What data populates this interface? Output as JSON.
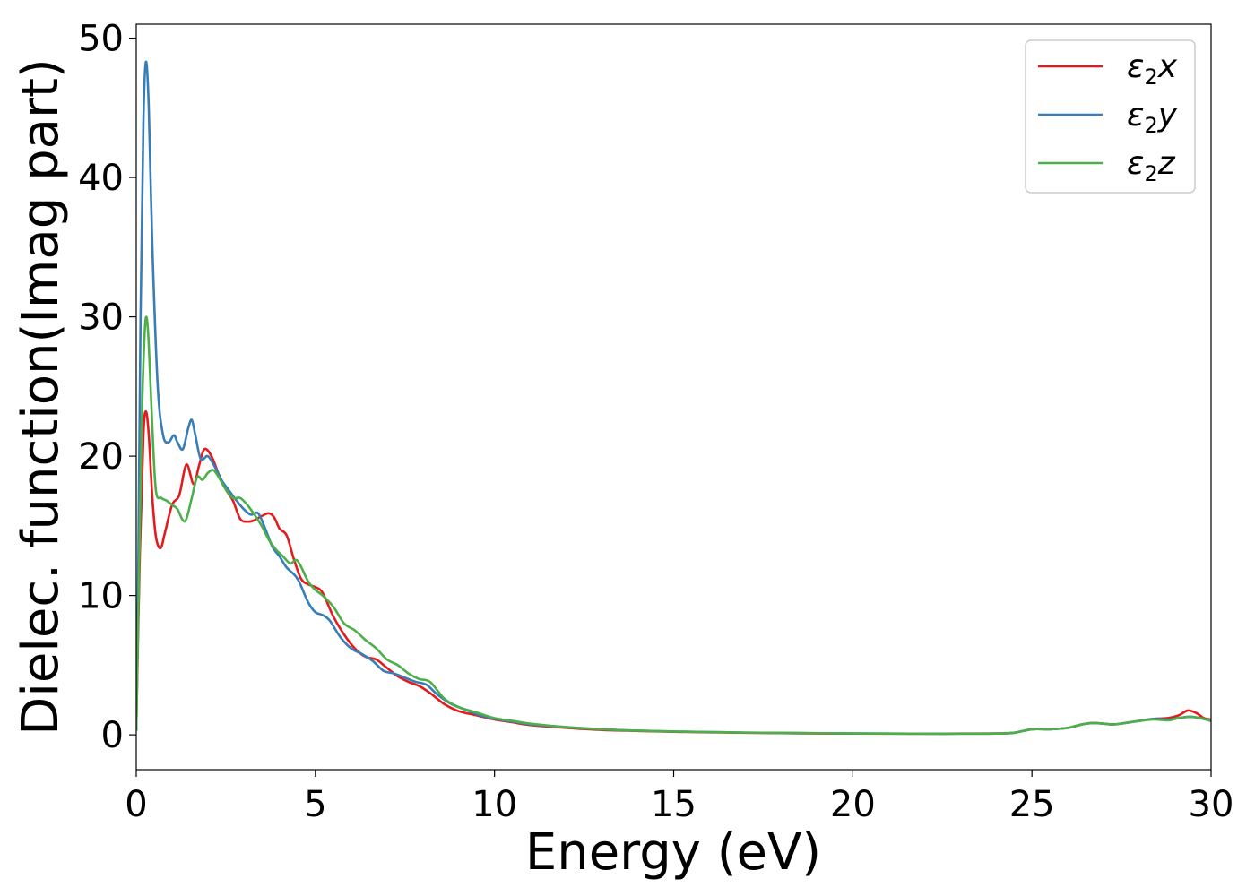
{
  "chart_data": {
    "type": "line",
    "title": "",
    "xlabel": "Energy (eV)",
    "ylabel": "Dielec. function(Imag part)",
    "xlim": [
      0,
      30
    ],
    "ylim": [
      -2.5,
      51
    ],
    "xticks": [
      0,
      5,
      10,
      15,
      20,
      25,
      30
    ],
    "yticks": [
      0,
      10,
      20,
      30,
      40,
      50
    ],
    "xtick_labels": [
      "0",
      "5",
      "10",
      "15",
      "20",
      "25",
      "30"
    ],
    "ytick_labels": [
      "0",
      "10",
      "20",
      "30",
      "40",
      "50"
    ],
    "grid": false,
    "legend_position": "top-right",
    "series": [
      {
        "name": "ε₂x",
        "legend_base": "ε",
        "legend_sub": "2",
        "legend_var": "x",
        "color": "#e41a1c",
        "x": [
          0,
          0.1,
          0.2,
          0.27,
          0.35,
          0.45,
          0.55,
          0.68,
          0.8,
          1.0,
          1.2,
          1.4,
          1.6,
          1.75,
          1.9,
          2.1,
          2.3,
          2.5,
          2.7,
          2.9,
          3.1,
          3.3,
          3.5,
          3.7,
          3.85,
          4.0,
          4.2,
          4.4,
          4.6,
          4.8,
          5.0,
          5.2,
          5.5,
          5.8,
          6.1,
          6.4,
          6.7,
          7.0,
          7.3,
          7.6,
          7.9,
          8.2,
          8.6,
          9.0,
          9.5,
          10,
          10.5,
          11,
          12,
          13,
          14,
          15,
          16,
          17,
          18,
          19,
          20,
          21,
          22,
          23,
          24,
          24.5,
          25,
          25.5,
          26,
          26.4,
          26.7,
          27,
          27.3,
          27.6,
          28,
          28.4,
          28.8,
          29.1,
          29.35,
          29.6,
          29.8,
          30
        ],
        "y": [
          0.3,
          13,
          21.5,
          23.2,
          21.5,
          17,
          14.2,
          13.4,
          14.5,
          16.5,
          17.2,
          19.4,
          18.0,
          19.3,
          20.5,
          20.0,
          18.7,
          17.6,
          16.8,
          15.5,
          15.3,
          15.4,
          15.7,
          15.9,
          15.6,
          14.8,
          14.3,
          12.6,
          11.2,
          10.8,
          10.6,
          10.2,
          8.5,
          7.2,
          6.2,
          5.6,
          5.4,
          4.8,
          4.2,
          3.8,
          3.5,
          3.0,
          2.2,
          1.7,
          1.4,
          1.1,
          0.9,
          0.7,
          0.5,
          0.35,
          0.28,
          0.22,
          0.18,
          0.15,
          0.12,
          0.1,
          0.09,
          0.08,
          0.08,
          0.09,
          0.1,
          0.15,
          0.4,
          0.4,
          0.5,
          0.75,
          0.85,
          0.8,
          0.75,
          0.85,
          1.0,
          1.15,
          1.2,
          1.4,
          1.75,
          1.55,
          1.2,
          1.1
        ]
      },
      {
        "name": "ε₂y",
        "legend_base": "ε",
        "legend_sub": "2",
        "legend_var": "y",
        "color": "#377eb8",
        "x": [
          0,
          0.05,
          0.12,
          0.2,
          0.27,
          0.35,
          0.45,
          0.6,
          0.75,
          0.9,
          1.05,
          1.15,
          1.3,
          1.45,
          1.55,
          1.65,
          1.8,
          2.0,
          2.2,
          2.4,
          2.6,
          2.8,
          3.0,
          3.2,
          3.4,
          3.6,
          3.8,
          4.0,
          4.2,
          4.5,
          4.8,
          5.0,
          5.2,
          5.4,
          5.7,
          6.0,
          6.3,
          6.6,
          6.9,
          7.2,
          7.5,
          7.8,
          8.1,
          8.4,
          8.8,
          9.2,
          9.6,
          10,
          10.5,
          11,
          12,
          13,
          14,
          15,
          16,
          17,
          18,
          19,
          20,
          21,
          22,
          23,
          24,
          24.5,
          25,
          25.5,
          26,
          26.4,
          26.7,
          27,
          27.3,
          27.6,
          28,
          28.4,
          28.8,
          29.1,
          29.4,
          29.7,
          30
        ],
        "y": [
          0.3,
          10,
          30,
          44,
          48.3,
          45,
          35,
          25,
          21.5,
          21.0,
          21.5,
          21.0,
          20.5,
          22.0,
          22.6,
          21.5,
          19.8,
          20.0,
          19.2,
          18.2,
          17.5,
          16.8,
          16.2,
          15.8,
          15.9,
          14.8,
          13.5,
          12.8,
          12.0,
          11.2,
          9.5,
          8.8,
          8.6,
          8.2,
          7.0,
          6.2,
          5.8,
          5.3,
          4.6,
          4.4,
          4.1,
          3.8,
          3.6,
          2.9,
          2.2,
          1.8,
          1.4,
          1.15,
          0.95,
          0.75,
          0.55,
          0.4,
          0.3,
          0.24,
          0.2,
          0.16,
          0.14,
          0.12,
          0.1,
          0.09,
          0.08,
          0.08,
          0.09,
          0.15,
          0.4,
          0.4,
          0.5,
          0.75,
          0.85,
          0.8,
          0.75,
          0.85,
          1.0,
          1.15,
          1.1,
          1.2,
          1.3,
          1.2,
          1.0
        ]
      },
      {
        "name": "ε₂z",
        "legend_base": "ε",
        "legend_sub": "2",
        "legend_var": "z",
        "color": "#4daf4a",
        "x": [
          0,
          0.08,
          0.15,
          0.22,
          0.28,
          0.35,
          0.45,
          0.55,
          0.7,
          0.85,
          1.0,
          1.15,
          1.3,
          1.4,
          1.55,
          1.7,
          1.85,
          2.0,
          2.15,
          2.3,
          2.5,
          2.7,
          2.9,
          3.1,
          3.3,
          3.5,
          3.7,
          3.9,
          4.1,
          4.3,
          4.5,
          4.8,
          5.0,
          5.2,
          5.5,
          5.8,
          6.1,
          6.4,
          6.7,
          7.0,
          7.3,
          7.6,
          7.9,
          8.2,
          8.6,
          9.0,
          9.5,
          10,
          10.5,
          11,
          12,
          13,
          14,
          15,
          16,
          17,
          18,
          19,
          20,
          21,
          22,
          23,
          24,
          24.5,
          25,
          25.5,
          26,
          26.4,
          26.7,
          27,
          27.3,
          27.6,
          28,
          28.4,
          28.8,
          29.1,
          29.4,
          29.7,
          30
        ],
        "y": [
          0.3,
          12,
          22,
          28,
          30,
          28,
          22,
          17.5,
          17.0,
          16.8,
          16.5,
          16.2,
          15.4,
          15.5,
          17.0,
          18.5,
          18.3,
          18.8,
          19.0,
          18.5,
          17.6,
          17.0,
          17.0,
          16.5,
          15.8,
          15.0,
          14.0,
          13.3,
          12.8,
          12.3,
          12.5,
          11.0,
          10.4,
          10.0,
          9.2,
          8.0,
          7.5,
          6.8,
          6.2,
          5.4,
          5.0,
          4.4,
          4.0,
          3.8,
          2.6,
          2.0,
          1.6,
          1.2,
          1.0,
          0.8,
          0.55,
          0.4,
          0.3,
          0.24,
          0.2,
          0.16,
          0.14,
          0.12,
          0.1,
          0.09,
          0.08,
          0.08,
          0.09,
          0.15,
          0.4,
          0.4,
          0.5,
          0.75,
          0.85,
          0.8,
          0.75,
          0.85,
          1.0,
          1.1,
          1.05,
          1.2,
          1.3,
          1.2,
          1.0
        ]
      }
    ]
  }
}
